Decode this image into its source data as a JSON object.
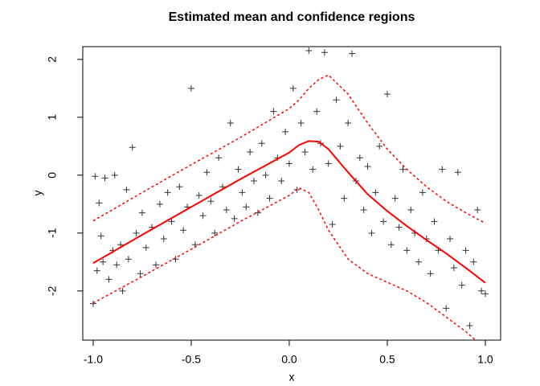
{
  "chart_data": {
    "type": "scatter",
    "title": "Estimated mean and confidence regions",
    "xlabel": "x",
    "ylabel": "y",
    "xlim": [
      -1.053,
      1.078
    ],
    "ylim": [
      -2.85,
      2.22
    ],
    "xticks": [
      {
        "value": -1,
        "label": "-1.0"
      },
      -0.5,
      {
        "value": 0,
        "label": "0.0"
      },
      0.5,
      {
        "value": 1,
        "label": "1.0"
      }
    ],
    "yticks": [
      -2,
      -1,
      0,
      1,
      2
    ],
    "points": {
      "color": "#000000",
      "x": [
        -1.0,
        -0.99,
        -0.98,
        -0.97,
        -0.96,
        -0.95,
        -0.94,
        -0.92,
        -0.9,
        -0.89,
        -0.88,
        -0.86,
        -0.85,
        -0.83,
        -0.82,
        -0.8,
        -0.78,
        -0.76,
        -0.75,
        -0.73,
        -0.7,
        -0.68,
        -0.66,
        -0.64,
        -0.62,
        -0.6,
        -0.58,
        -0.56,
        -0.54,
        -0.52,
        -0.5,
        -0.48,
        -0.46,
        -0.44,
        -0.42,
        -0.4,
        -0.38,
        -0.36,
        -0.34,
        -0.32,
        -0.3,
        -0.28,
        -0.26,
        -0.24,
        -0.22,
        -0.2,
        -0.18,
        -0.16,
        -0.14,
        -0.12,
        -0.1,
        -0.08,
        -0.06,
        -0.04,
        -0.02,
        0.0,
        0.02,
        0.04,
        0.06,
        0.08,
        0.1,
        0.12,
        0.14,
        0.16,
        0.18,
        0.2,
        0.22,
        0.24,
        0.26,
        0.28,
        0.3,
        0.32,
        0.34,
        0.36,
        0.38,
        0.4,
        0.42,
        0.44,
        0.46,
        0.48,
        0.5,
        0.52,
        0.54,
        0.56,
        0.58,
        0.6,
        0.62,
        0.64,
        0.66,
        0.68,
        0.7,
        0.72,
        0.74,
        0.76,
        0.78,
        0.8,
        0.82,
        0.84,
        0.86,
        0.88,
        0.9,
        0.92,
        0.94,
        0.96,
        0.98,
        1.0
      ],
      "y": [
        -2.22,
        -0.02,
        -1.65,
        -0.48,
        -1.05,
        -1.5,
        -0.05,
        -1.8,
        -1.3,
        0.0,
        -1.55,
        -1.2,
        -2.0,
        -0.25,
        -1.45,
        0.48,
        -1.0,
        -1.7,
        -0.65,
        -1.25,
        -0.9,
        -1.55,
        -0.5,
        -1.1,
        -0.3,
        -0.8,
        -1.45,
        -0.2,
        -0.95,
        -0.55,
        1.5,
        -1.2,
        -0.35,
        -0.7,
        0.05,
        -0.45,
        -1.0,
        0.3,
        -0.2,
        -0.6,
        0.9,
        -0.75,
        0.1,
        -0.3,
        -0.55,
        0.4,
        -0.1,
        -0.65,
        0.55,
        0.0,
        -0.4,
        1.1,
        0.3,
        -0.1,
        0.75,
        0.2,
        1.5,
        -0.25,
        0.9,
        0.4,
        2.15,
        0.1,
        1.1,
        0.55,
        2.12,
        0.2,
        -0.85,
        1.3,
        0.5,
        -0.4,
        0.9,
        2.1,
        -0.1,
        0.3,
        -0.6,
        0.15,
        -1.0,
        -0.3,
        0.5,
        -0.8,
        1.4,
        -1.2,
        -0.4,
        -0.9,
        0.1,
        -1.3,
        -0.6,
        -1.0,
        -1.5,
        -0.3,
        -1.1,
        -1.7,
        -0.8,
        -1.3,
        0.1,
        -2.3,
        -1.1,
        -1.6,
        0.05,
        -1.9,
        -1.3,
        -2.6,
        -1.5,
        -0.6,
        -2.0,
        -2.05
      ]
    },
    "lines": [
      {
        "color": "#ff0000",
        "style": "solid",
        "x": [
          -1,
          -0.75,
          -0.5,
          -0.25,
          0,
          0.05,
          0.1,
          0.15,
          0.2,
          0.3,
          0.4,
          0.5,
          0.6,
          0.7,
          0.8,
          0.9,
          1.0
        ],
        "values": [
          -1.52,
          -1.03,
          -0.55,
          -0.07,
          0.39,
          0.52,
          0.59,
          0.58,
          0.45,
          0.05,
          -0.33,
          -0.62,
          -0.88,
          -1.12,
          -1.35,
          -1.6,
          -1.86
        ]
      },
      {
        "color": "#ff0000",
        "style": "dashed",
        "x": [
          -1,
          -0.75,
          -0.5,
          -0.25,
          0,
          0.05,
          0.1,
          0.15,
          0.2,
          0.3,
          0.4,
          0.5,
          0.6,
          0.7,
          0.8,
          0.9,
          1.0
        ],
        "values": [
          -0.79,
          -0.3,
          0.18,
          0.65,
          1.15,
          1.3,
          1.5,
          1.65,
          1.73,
          1.4,
          0.9,
          0.45,
          0.1,
          -0.2,
          -0.45,
          -0.65,
          -0.83
        ]
      },
      {
        "color": "#ff0000",
        "style": "dashed",
        "x": [
          -1,
          -0.75,
          -0.5,
          -0.25,
          0,
          0.05,
          0.1,
          0.15,
          0.2,
          0.3,
          0.4,
          0.5,
          0.6,
          0.7,
          0.8,
          0.9,
          1.0
        ],
        "values": [
          -2.21,
          -1.75,
          -1.28,
          -0.8,
          -0.35,
          -0.22,
          -0.3,
          -0.6,
          -0.95,
          -1.45,
          -1.7,
          -1.85,
          -2.0,
          -2.2,
          -2.45,
          -2.7,
          -3.0
        ]
      }
    ]
  }
}
